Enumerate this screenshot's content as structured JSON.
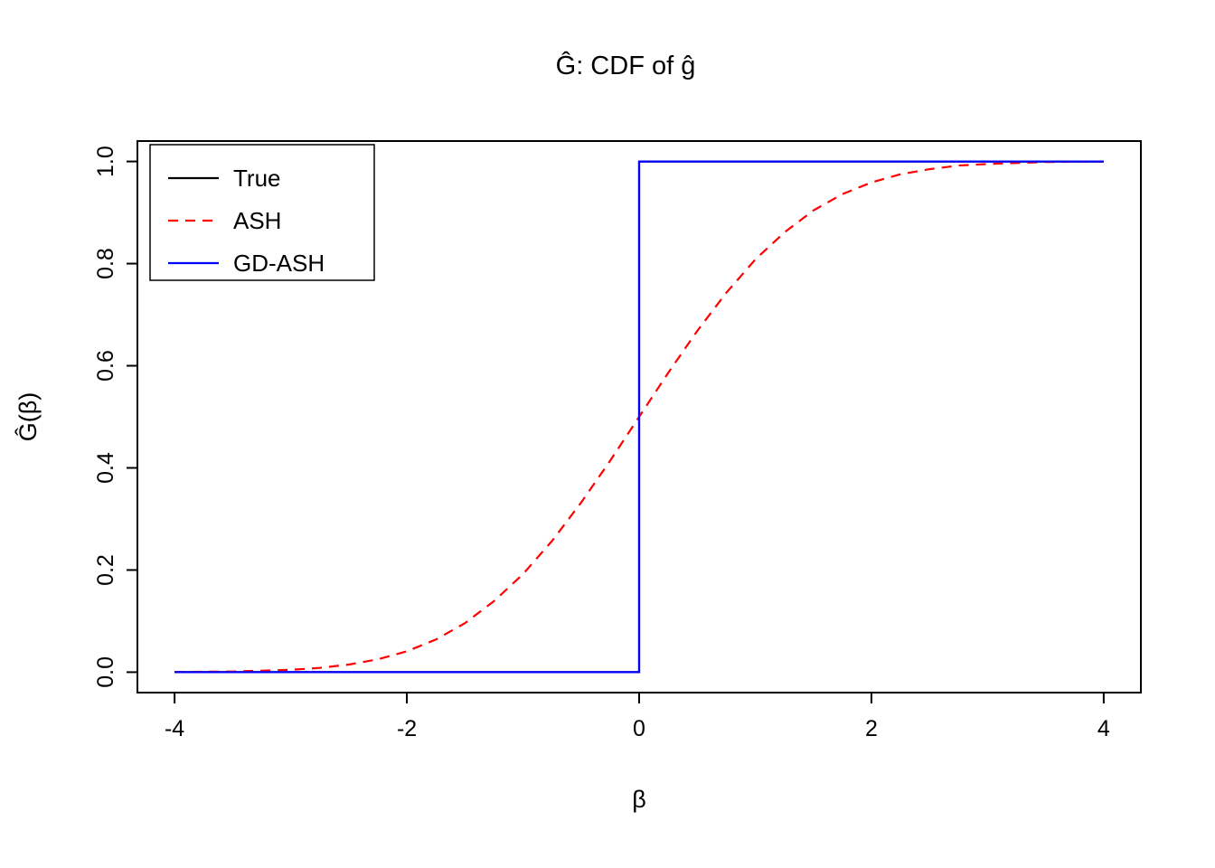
{
  "chart_data": {
    "type": "line",
    "title": "Ĝ: CDF of ĝ",
    "xlabel": "β",
    "ylabel": "Ĝ(β)",
    "xlim": [
      -4,
      4
    ],
    "ylim": [
      0,
      1
    ],
    "x_ticks": [
      -4,
      -2,
      0,
      2,
      4
    ],
    "x_tick_labels": [
      "-4",
      "-2",
      "0",
      "2",
      "4"
    ],
    "y_ticks": [
      0.0,
      0.2,
      0.4,
      0.6,
      0.8,
      1.0
    ],
    "y_tick_labels": [
      "0.0",
      "0.2",
      "0.4",
      "0.6",
      "0.8",
      "1.0"
    ],
    "grid": false,
    "legend": {
      "position": "topleft",
      "entries": [
        "True",
        "ASH",
        "GD-ASH"
      ]
    },
    "series": [
      {
        "name": "True",
        "color": "#000000",
        "dash": "solid",
        "x": [
          -4,
          0,
          0,
          4
        ],
        "y": [
          0,
          0,
          1,
          1
        ]
      },
      {
        "name": "ASH",
        "color": "#ff0000",
        "dash": "dashed",
        "x": [
          -4,
          -3.5,
          -3,
          -2.75,
          -2.5,
          -2.25,
          -2,
          -1.75,
          -1.5,
          -1.25,
          -1,
          -0.75,
          -0.5,
          -0.25,
          0,
          0.25,
          0.5,
          0.75,
          1,
          1.25,
          1.5,
          1.75,
          2,
          2.25,
          2.5,
          2.75,
          3,
          3.5,
          4
        ],
        "y": [
          0.0003,
          0.0012,
          0.0046,
          0.0084,
          0.0148,
          0.0252,
          0.041,
          0.064,
          0.096,
          0.139,
          0.192,
          0.257,
          0.332,
          0.414,
          0.5,
          0.586,
          0.668,
          0.743,
          0.808,
          0.861,
          0.904,
          0.936,
          0.959,
          0.975,
          0.985,
          0.992,
          0.995,
          0.999,
          1.0
        ]
      },
      {
        "name": "GD-ASH",
        "color": "#0000ff",
        "dash": "solid",
        "x": [
          -4,
          0,
          0,
          4
        ],
        "y": [
          0,
          0,
          1,
          1
        ]
      }
    ]
  }
}
